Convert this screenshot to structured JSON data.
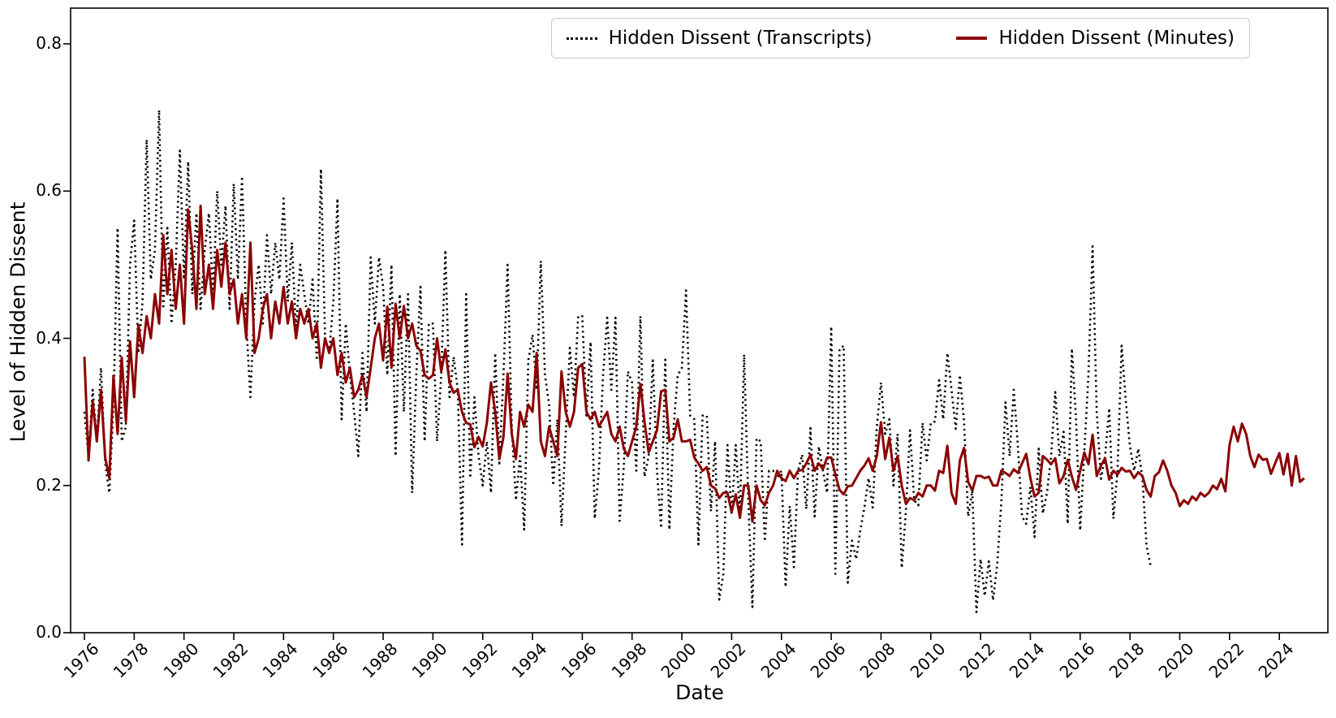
{
  "figure_title": "",
  "axes": {
    "xlabel": "Date",
    "ylabel": "Level of Hidden Dissent"
  },
  "legend": {
    "entries": [
      {
        "label": "Hidden Dissent (Transcripts)",
        "style": "dotted",
        "color": "#000000"
      },
      {
        "label": "Hidden Dissent (Minutes)",
        "style": "solid",
        "color": "#8B0000"
      }
    ],
    "position": "upper right"
  },
  "chart_data": {
    "type": "line",
    "title": "",
    "xlabel": "Date",
    "ylabel": "Level of Hidden Dissent",
    "x_tick_labels": [
      "1976",
      "1978",
      "1980",
      "1982",
      "1984",
      "1986",
      "1988",
      "1990",
      "1992",
      "1994",
      "1996",
      "1998",
      "2000",
      "2002",
      "2004",
      "2006",
      "2008",
      "2010",
      "2012",
      "2014",
      "2016",
      "2018",
      "2020",
      "2022",
      "2024"
    ],
    "y_tick_values": [
      0.0,
      0.2,
      0.4,
      0.6,
      0.8
    ],
    "xlim": [
      1975.45,
      2025.95
    ],
    "ylim": [
      0.0,
      0.849
    ],
    "grid": false,
    "legend_position": "upper right",
    "series": [
      {
        "name": "Hidden Dissent (Transcripts)",
        "color": "#000000",
        "style": "dotted",
        "line_width": 2.6,
        "start_year": 1976.0,
        "points_per_year": 6,
        "values": [
          0.3,
          0.24,
          0.33,
          0.26,
          0.36,
          0.23,
          0.19,
          0.31,
          0.55,
          0.26,
          0.28,
          0.5,
          0.56,
          0.38,
          0.45,
          0.67,
          0.48,
          0.52,
          0.71,
          0.44,
          0.55,
          0.42,
          0.5,
          0.655,
          0.48,
          0.64,
          0.46,
          0.57,
          0.44,
          0.52,
          0.57,
          0.46,
          0.6,
          0.5,
          0.58,
          0.44,
          0.61,
          0.48,
          0.62,
          0.42,
          0.32,
          0.45,
          0.5,
          0.42,
          0.54,
          0.46,
          0.53,
          0.48,
          0.59,
          0.45,
          0.53,
          0.41,
          0.5,
          0.46,
          0.42,
          0.48,
          0.37,
          0.63,
          0.4,
          0.38,
          0.45,
          0.59,
          0.29,
          0.42,
          0.35,
          0.3,
          0.24,
          0.38,
          0.3,
          0.51,
          0.42,
          0.51,
          0.47,
          0.35,
          0.5,
          0.24,
          0.46,
          0.3,
          0.46,
          0.19,
          0.35,
          0.47,
          0.26,
          0.42,
          0.42,
          0.26,
          0.35,
          0.52,
          0.32,
          0.375,
          0.33,
          0.12,
          0.46,
          0.21,
          0.32,
          0.24,
          0.2,
          0.26,
          0.19,
          0.38,
          0.23,
          0.35,
          0.5,
          0.28,
          0.18,
          0.24,
          0.14,
          0.37,
          0.405,
          0.33,
          0.505,
          0.35,
          0.31,
          0.2,
          0.29,
          0.145,
          0.27,
          0.387,
          0.32,
          0.43,
          0.43,
          0.295,
          0.395,
          0.155,
          0.22,
          0.35,
          0.428,
          0.33,
          0.428,
          0.152,
          0.225,
          0.355,
          0.34,
          0.22,
          0.43,
          0.212,
          0.24,
          0.37,
          0.22,
          0.142,
          0.371,
          0.14,
          0.28,
          0.35,
          0.36,
          0.465,
          0.295,
          0.29,
          0.12,
          0.295,
          0.295,
          0.165,
          0.26,
          0.045,
          0.08,
          0.255,
          0.16,
          0.255,
          0.16,
          0.378,
          0.18,
          0.035,
          0.264,
          0.26,
          0.124,
          0.22,
          0.22,
          0.21,
          0.22,
          0.062,
          0.172,
          0.089,
          0.22,
          0.242,
          0.168,
          0.278,
          0.158,
          0.253,
          0.22,
          0.19,
          0.416,
          0.08,
          0.385,
          0.39,
          0.068,
          0.125,
          0.1,
          0.139,
          0.17,
          0.21,
          0.17,
          0.28,
          0.34,
          0.27,
          0.29,
          0.2,
          0.27,
          0.088,
          0.165,
          0.275,
          0.18,
          0.173,
          0.285,
          0.234,
          0.285,
          0.287,
          0.343,
          0.29,
          0.38,
          0.33,
          0.277,
          0.35,
          0.287,
          0.158,
          0.193,
          0.028,
          0.1,
          0.05,
          0.097,
          0.044,
          0.093,
          0.177,
          0.313,
          0.24,
          0.33,
          0.253,
          0.158,
          0.148,
          0.198,
          0.13,
          0.25,
          0.162,
          0.19,
          0.24,
          0.327,
          0.24,
          0.273,
          0.148,
          0.386,
          0.29,
          0.139,
          0.245,
          0.35,
          0.525,
          0.3,
          0.209,
          0.24,
          0.305,
          0.155,
          0.22,
          0.39,
          0.315,
          0.253,
          0.22,
          0.25,
          0.21,
          0.118,
          0.09
        ]
      },
      {
        "name": "Hidden Dissent (Minutes)",
        "color": "#8B0000",
        "style": "solid",
        "line_width": 3.0,
        "start_year": 1976.0,
        "points_per_year": 6,
        "values": [
          0.375,
          0.234,
          0.315,
          0.26,
          0.33,
          0.238,
          0.21,
          0.349,
          0.27,
          0.374,
          0.287,
          0.396,
          0.32,
          0.418,
          0.38,
          0.43,
          0.4,
          0.46,
          0.42,
          0.54,
          0.46,
          0.52,
          0.44,
          0.5,
          0.42,
          0.575,
          0.52,
          0.44,
          0.58,
          0.46,
          0.5,
          0.44,
          0.52,
          0.47,
          0.53,
          0.46,
          0.48,
          0.42,
          0.46,
          0.4,
          0.53,
          0.38,
          0.4,
          0.44,
          0.46,
          0.4,
          0.45,
          0.42,
          0.47,
          0.42,
          0.45,
          0.4,
          0.44,
          0.42,
          0.44,
          0.4,
          0.42,
          0.36,
          0.4,
          0.38,
          0.4,
          0.35,
          0.38,
          0.34,
          0.36,
          0.32,
          0.33,
          0.35,
          0.32,
          0.36,
          0.4,
          0.42,
          0.37,
          0.443,
          0.36,
          0.447,
          0.4,
          0.444,
          0.4,
          0.42,
          0.39,
          0.383,
          0.35,
          0.345,
          0.35,
          0.4,
          0.355,
          0.385,
          0.34,
          0.326,
          0.33,
          0.3,
          0.285,
          0.283,
          0.252,
          0.266,
          0.253,
          0.285,
          0.34,
          0.3,
          0.236,
          0.266,
          0.352,
          0.27,
          0.236,
          0.3,
          0.28,
          0.31,
          0.3,
          0.38,
          0.26,
          0.24,
          0.28,
          0.26,
          0.24,
          0.355,
          0.3,
          0.28,
          0.3,
          0.36,
          0.365,
          0.3,
          0.29,
          0.3,
          0.28,
          0.29,
          0.3,
          0.27,
          0.26,
          0.28,
          0.25,
          0.24,
          0.26,
          0.28,
          0.338,
          0.286,
          0.245,
          0.26,
          0.275,
          0.328,
          0.33,
          0.26,
          0.265,
          0.29,
          0.26,
          0.26,
          0.262,
          0.238,
          0.23,
          0.22,
          0.225,
          0.2,
          0.196,
          0.183,
          0.19,
          0.19,
          0.164,
          0.188,
          0.156,
          0.2,
          0.2,
          0.151,
          0.2,
          0.18,
          0.173,
          0.19,
          0.2,
          0.22,
          0.21,
          0.206,
          0.22,
          0.21,
          0.22,
          0.221,
          0.23,
          0.242,
          0.22,
          0.23,
          0.222,
          0.238,
          0.238,
          0.215,
          0.194,
          0.188,
          0.199,
          0.2,
          0.21,
          0.22,
          0.227,
          0.237,
          0.22,
          0.24,
          0.286,
          0.236,
          0.265,
          0.22,
          0.24,
          0.2,
          0.175,
          0.183,
          0.18,
          0.19,
          0.185,
          0.2,
          0.2,
          0.193,
          0.22,
          0.217,
          0.254,
          0.19,
          0.175,
          0.234,
          0.251,
          0.205,
          0.193,
          0.213,
          0.213,
          0.21,
          0.212,
          0.2,
          0.2,
          0.22,
          0.217,
          0.213,
          0.222,
          0.217,
          0.23,
          0.243,
          0.21,
          0.185,
          0.19,
          0.24,
          0.235,
          0.229,
          0.237,
          0.203,
          0.213,
          0.235,
          0.212,
          0.194,
          0.22,
          0.245,
          0.229,
          0.269,
          0.213,
          0.227,
          0.237,
          0.208,
          0.22,
          0.215,
          0.224,
          0.219,
          0.22,
          0.21,
          0.218,
          0.213,
          0.194,
          0.185,
          0.213,
          0.218,
          0.234,
          0.22,
          0.2,
          0.19,
          0.172,
          0.18,
          0.175,
          0.185,
          0.18,
          0.19,
          0.185,
          0.19,
          0.2,
          0.195,
          0.209,
          0.192,
          0.255,
          0.28,
          0.26,
          0.284,
          0.27,
          0.24,
          0.225,
          0.242,
          0.235,
          0.236,
          0.216,
          0.23,
          0.244,
          0.215,
          0.243,
          0.2,
          0.24,
          0.205,
          0.21
        ]
      }
    ]
  }
}
